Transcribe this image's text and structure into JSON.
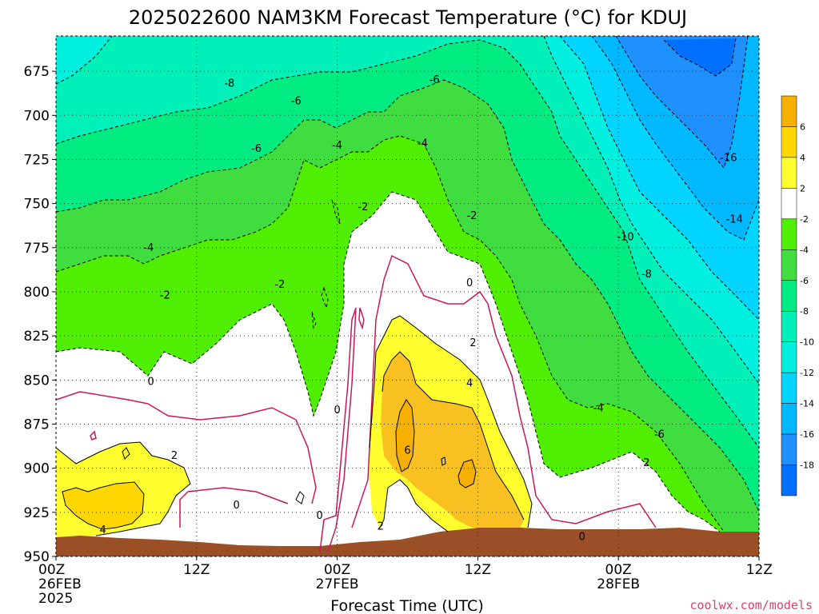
{
  "chart_data": {
    "type": "heatmap",
    "title": "2025022600 NAM3KM Forecast Temperature (°C) for KDUJ",
    "xlabel": "Forecast Time (UTC)",
    "ylabel": "",
    "y_levels": [
      675,
      700,
      725,
      750,
      775,
      800,
      825,
      850,
      875,
      900,
      925,
      950
    ],
    "ylim": [
      950,
      655
    ],
    "x_hours": [
      0,
      12,
      24,
      36,
      48,
      60
    ],
    "x_tick_labels": [
      {
        "line1": "00Z",
        "line2": "26FEB",
        "line3": "2025"
      },
      {
        "line1": "12Z",
        "line2": "",
        "line3": ""
      },
      {
        "line1": "00Z",
        "line2": "27FEB",
        "line3": ""
      },
      {
        "line1": "12Z",
        "line2": "",
        "line3": ""
      },
      {
        "line1": "00Z",
        "line2": "28FEB",
        "line3": ""
      },
      {
        "line1": "12Z",
        "line2": "",
        "line3": ""
      }
    ],
    "grid": true,
    "colorbar": {
      "ticks": [
        "6",
        "4",
        "2",
        "-2",
        "-4",
        "-6",
        "-8",
        "-10",
        "-12",
        "-14",
        "-16",
        "-18"
      ],
      "colors": [
        "#f8b000",
        "#ffd700",
        "#ffff30",
        "#ffffff",
        "#50ee00",
        "#40dd40",
        "#00ec80",
        "#00f0b8",
        "#00f0e0",
        "#00d4ff",
        "#00b8ff",
        "#1e90ff",
        "#0070ff"
      ]
    },
    "contour_labels": [
      {
        "text": "-8",
        "hour": 14.8,
        "p": 682
      },
      {
        "text": "-6",
        "hour": 20.5,
        "p": 692
      },
      {
        "text": "-6",
        "hour": 32.3,
        "p": 680
      },
      {
        "text": "-4",
        "hour": 24.0,
        "p": 717
      },
      {
        "text": "-4",
        "hour": 31.3,
        "p": 716
      },
      {
        "text": "-6",
        "hour": 17.1,
        "p": 719
      },
      {
        "text": "-4",
        "hour": 7.9,
        "p": 775
      },
      {
        "text": "-2",
        "hour": 26.2,
        "p": 752
      },
      {
        "text": "-2",
        "hour": 35.5,
        "p": 757
      },
      {
        "text": "-2",
        "hour": 19.1,
        "p": 796
      },
      {
        "text": "-2",
        "hour": 9.3,
        "p": 802
      },
      {
        "text": "0",
        "hour": 35.3,
        "p": 795
      },
      {
        "text": "2",
        "hour": 35.6,
        "p": 829
      },
      {
        "text": "4",
        "hour": 35.3,
        "p": 852
      },
      {
        "text": "6",
        "hour": 30.0,
        "p": 890
      },
      {
        "text": "0",
        "hour": 8.1,
        "p": 851
      },
      {
        "text": "2",
        "hour": 10.1,
        "p": 893
      },
      {
        "text": "4",
        "hour": 4.0,
        "p": 935
      },
      {
        "text": "0",
        "hour": 15.4,
        "p": 921
      },
      {
        "text": "0",
        "hour": 22.5,
        "p": 927
      },
      {
        "text": "0",
        "hour": 24.0,
        "p": 867
      },
      {
        "text": "2",
        "hour": 27.7,
        "p": 933
      },
      {
        "text": "0",
        "hour": 44.9,
        "p": 939
      },
      {
        "text": "-4",
        "hour": 46.3,
        "p": 866
      },
      {
        "text": "-6",
        "hour": 51.5,
        "p": 881
      },
      {
        "text": "2",
        "hour": 50.4,
        "p": 897
      },
      {
        "text": "-8",
        "hour": 50.4,
        "p": 790
      },
      {
        "text": "-10",
        "hour": 48.6,
        "p": 769
      },
      {
        "text": "-14",
        "hour": 57.9,
        "p": 759
      },
      {
        "text": "-16",
        "hour": 57.4,
        "p": 724
      }
    ],
    "surface_label": "",
    "credit": "coolwx.com/models"
  }
}
